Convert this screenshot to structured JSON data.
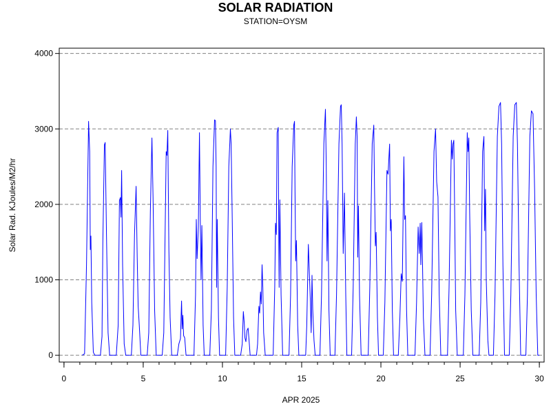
{
  "chart_data": {
    "type": "line",
    "title": "SOLAR RADIATION",
    "subtitle": "STATION=OYSM",
    "xlabel": "APR 2025",
    "ylabel": "Solar Rad. KJoules/M2/hr",
    "xlim": [
      -0.3,
      30.3
    ],
    "ylim": [
      -90,
      4070
    ],
    "x_ticks": [
      0,
      5,
      10,
      15,
      20,
      25,
      30
    ],
    "x_minor_step": 1,
    "y_ticks": [
      0,
      1000,
      2000,
      3000,
      4000
    ],
    "grid": "horizontal-dashed",
    "series": [
      {
        "color": "#0000ff",
        "points": [
          [
            1.15,
            0
          ],
          [
            1.3,
            20
          ],
          [
            1.42,
            1200
          ],
          [
            1.55,
            3100
          ],
          [
            1.62,
            2700
          ],
          [
            1.66,
            1400
          ],
          [
            1.7,
            1580
          ],
          [
            1.75,
            700
          ],
          [
            1.85,
            40
          ],
          [
            1.95,
            0
          ],
          [
            2.3,
            0
          ],
          [
            2.4,
            250
          ],
          [
            2.45,
            1480
          ],
          [
            2.55,
            2790
          ],
          [
            2.6,
            2820
          ],
          [
            2.68,
            1600
          ],
          [
            2.78,
            300
          ],
          [
            2.88,
            0
          ],
          [
            3.3,
            0
          ],
          [
            3.42,
            400
          ],
          [
            3.5,
            2050
          ],
          [
            3.56,
            2090
          ],
          [
            3.6,
            1830
          ],
          [
            3.64,
            2450
          ],
          [
            3.7,
            1200
          ],
          [
            3.8,
            150
          ],
          [
            3.9,
            0
          ],
          [
            4.25,
            0
          ],
          [
            4.35,
            400
          ],
          [
            4.45,
            1600
          ],
          [
            4.55,
            2240
          ],
          [
            4.62,
            1300
          ],
          [
            4.68,
            650
          ],
          [
            4.75,
            400
          ],
          [
            4.85,
            0
          ],
          [
            5.25,
            0
          ],
          [
            5.35,
            300
          ],
          [
            5.45,
            1900
          ],
          [
            5.55,
            2880
          ],
          [
            5.62,
            2100
          ],
          [
            5.67,
            1400
          ],
          [
            5.72,
            600
          ],
          [
            5.82,
            0
          ],
          [
            6.2,
            0
          ],
          [
            6.3,
            300
          ],
          [
            6.45,
            2700
          ],
          [
            6.5,
            2650
          ],
          [
            6.55,
            2980
          ],
          [
            6.62,
            1400
          ],
          [
            6.7,
            500
          ],
          [
            6.8,
            0
          ],
          [
            7.15,
            0
          ],
          [
            7.25,
            150
          ],
          [
            7.35,
            220
          ],
          [
            7.42,
            720
          ],
          [
            7.46,
            350
          ],
          [
            7.5,
            530
          ],
          [
            7.55,
            260
          ],
          [
            7.62,
            230
          ],
          [
            7.7,
            0
          ],
          [
            8.2,
            0
          ],
          [
            8.3,
            800
          ],
          [
            8.35,
            1800
          ],
          [
            8.4,
            1280
          ],
          [
            8.48,
            1700
          ],
          [
            8.55,
            2950
          ],
          [
            8.6,
            1800
          ],
          [
            8.65,
            1000
          ],
          [
            8.7,
            1720
          ],
          [
            8.78,
            400
          ],
          [
            8.85,
            0
          ],
          [
            9.2,
            0
          ],
          [
            9.3,
            600
          ],
          [
            9.4,
            2500
          ],
          [
            9.5,
            3120
          ],
          [
            9.56,
            3110
          ],
          [
            9.6,
            2500
          ],
          [
            9.63,
            900
          ],
          [
            9.67,
            1800
          ],
          [
            9.75,
            500
          ],
          [
            9.82,
            0
          ],
          [
            10.2,
            0
          ],
          [
            10.3,
            900
          ],
          [
            10.4,
            2500
          ],
          [
            10.5,
            3000
          ],
          [
            10.55,
            2800
          ],
          [
            10.62,
            1800
          ],
          [
            10.7,
            500
          ],
          [
            10.78,
            0
          ],
          [
            11.15,
            0
          ],
          [
            11.25,
            150
          ],
          [
            11.32,
            580
          ],
          [
            11.38,
            420
          ],
          [
            11.42,
            230
          ],
          [
            11.48,
            180
          ],
          [
            11.55,
            330
          ],
          [
            11.62,
            360
          ],
          [
            11.68,
            200
          ],
          [
            11.75,
            0
          ],
          [
            12.15,
            0
          ],
          [
            12.22,
            150
          ],
          [
            12.3,
            650
          ],
          [
            12.35,
            560
          ],
          [
            12.4,
            840
          ],
          [
            12.45,
            680
          ],
          [
            12.5,
            1200
          ],
          [
            12.55,
            900
          ],
          [
            12.6,
            300
          ],
          [
            12.7,
            0
          ],
          [
            13.2,
            0
          ],
          [
            13.3,
            900
          ],
          [
            13.35,
            1750
          ],
          [
            13.4,
            1600
          ],
          [
            13.45,
            2950
          ],
          [
            13.52,
            3020
          ],
          [
            13.55,
            1800
          ],
          [
            13.58,
            900
          ],
          [
            13.62,
            2060
          ],
          [
            13.7,
            800
          ],
          [
            13.8,
            0
          ],
          [
            14.2,
            0
          ],
          [
            14.3,
            800
          ],
          [
            14.4,
            2500
          ],
          [
            14.5,
            3050
          ],
          [
            14.55,
            3100
          ],
          [
            14.58,
            2200
          ],
          [
            14.62,
            1250
          ],
          [
            14.67,
            1520
          ],
          [
            14.75,
            400
          ],
          [
            14.82,
            0
          ],
          [
            15.25,
            0
          ],
          [
            15.32,
            400
          ],
          [
            15.42,
            1470
          ],
          [
            15.5,
            1000
          ],
          [
            15.55,
            700
          ],
          [
            15.6,
            300
          ],
          [
            15.65,
            1060
          ],
          [
            15.7,
            600
          ],
          [
            15.78,
            200
          ],
          [
            15.85,
            0
          ],
          [
            16.15,
            0
          ],
          [
            16.25,
            800
          ],
          [
            16.4,
            2800
          ],
          [
            16.5,
            3260
          ],
          [
            16.55,
            2500
          ],
          [
            16.6,
            1250
          ],
          [
            16.65,
            2050
          ],
          [
            16.72,
            600
          ],
          [
            16.8,
            0
          ],
          [
            17.1,
            0
          ],
          [
            17.2,
            800
          ],
          [
            17.35,
            2800
          ],
          [
            17.45,
            3300
          ],
          [
            17.5,
            3320
          ],
          [
            17.55,
            2800
          ],
          [
            17.62,
            1350
          ],
          [
            17.7,
            2150
          ],
          [
            17.78,
            800
          ],
          [
            17.85,
            0
          ],
          [
            18.15,
            0
          ],
          [
            18.25,
            900
          ],
          [
            18.38,
            2800
          ],
          [
            18.45,
            3160
          ],
          [
            18.5,
            2900
          ],
          [
            18.54,
            1300
          ],
          [
            18.58,
            1980
          ],
          [
            18.65,
            800
          ],
          [
            18.75,
            0
          ],
          [
            19.2,
            0
          ],
          [
            19.3,
            900
          ],
          [
            19.45,
            2800
          ],
          [
            19.55,
            3050
          ],
          [
            19.6,
            2200
          ],
          [
            19.65,
            1450
          ],
          [
            19.7,
            1630
          ],
          [
            19.78,
            500
          ],
          [
            19.85,
            0
          ],
          [
            20.15,
            0
          ],
          [
            20.25,
            700
          ],
          [
            20.38,
            2450
          ],
          [
            20.45,
            2400
          ],
          [
            20.55,
            2800
          ],
          [
            20.6,
            1650
          ],
          [
            20.65,
            1800
          ],
          [
            20.72,
            600
          ],
          [
            20.8,
            0
          ],
          [
            21.1,
            0
          ],
          [
            21.2,
            500
          ],
          [
            21.28,
            1080
          ],
          [
            21.35,
            980
          ],
          [
            21.45,
            2630
          ],
          [
            21.5,
            1800
          ],
          [
            21.55,
            1850
          ],
          [
            21.62,
            600
          ],
          [
            21.7,
            0
          ],
          [
            22.15,
            0
          ],
          [
            22.25,
            700
          ],
          [
            22.35,
            1700
          ],
          [
            22.42,
            1350
          ],
          [
            22.48,
            1750
          ],
          [
            22.52,
            1200
          ],
          [
            22.58,
            1760
          ],
          [
            22.62,
            1300
          ],
          [
            22.68,
            500
          ],
          [
            22.78,
            0
          ],
          [
            23.1,
            0
          ],
          [
            23.2,
            800
          ],
          [
            23.35,
            2700
          ],
          [
            23.45,
            3000
          ],
          [
            23.52,
            2300
          ],
          [
            23.6,
            2100
          ],
          [
            23.68,
            800
          ],
          [
            23.78,
            0
          ],
          [
            24.2,
            0
          ],
          [
            24.3,
            900
          ],
          [
            24.45,
            2850
          ],
          [
            24.5,
            2600
          ],
          [
            24.55,
            2800
          ],
          [
            24.6,
            2850
          ],
          [
            24.65,
            2000
          ],
          [
            24.72,
            600
          ],
          [
            24.82,
            0
          ],
          [
            25.2,
            0
          ],
          [
            25.3,
            800
          ],
          [
            25.45,
            2950
          ],
          [
            25.5,
            2700
          ],
          [
            25.55,
            2880
          ],
          [
            25.6,
            1900
          ],
          [
            25.7,
            600
          ],
          [
            25.8,
            0
          ],
          [
            26.2,
            0
          ],
          [
            26.3,
            700
          ],
          [
            26.42,
            2700
          ],
          [
            26.5,
            2900
          ],
          [
            26.55,
            1650
          ],
          [
            26.6,
            2200
          ],
          [
            26.65,
            1000
          ],
          [
            26.75,
            200
          ],
          [
            26.82,
            0
          ],
          [
            27.1,
            0
          ],
          [
            27.2,
            800
          ],
          [
            27.35,
            2900
          ],
          [
            27.45,
            3300
          ],
          [
            27.55,
            3350
          ],
          [
            27.62,
            2800
          ],
          [
            27.7,
            1200
          ],
          [
            27.8,
            0
          ],
          [
            28.1,
            0
          ],
          [
            28.2,
            800
          ],
          [
            28.35,
            2900
          ],
          [
            28.45,
            3320
          ],
          [
            28.55,
            3350
          ],
          [
            28.62,
            2800
          ],
          [
            28.72,
            1200
          ],
          [
            28.82,
            0
          ],
          [
            29.15,
            0
          ],
          [
            29.25,
            800
          ],
          [
            29.4,
            2900
          ],
          [
            29.5,
            3240
          ],
          [
            29.6,
            3200
          ],
          [
            29.7,
            2200
          ],
          [
            29.8,
            800
          ],
          [
            29.9,
            0
          ],
          [
            30.0,
            0
          ]
        ]
      }
    ]
  }
}
